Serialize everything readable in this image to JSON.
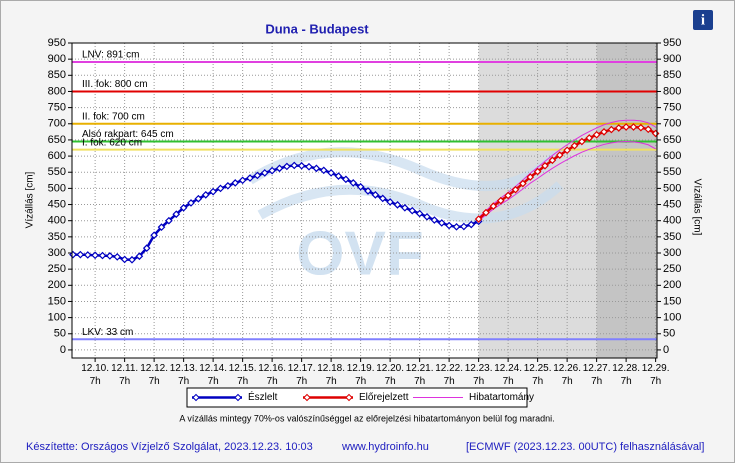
{
  "chart_data": {
    "type": "line",
    "title": "Duna - Budapest",
    "ylabel": "Vízállás [cm]",
    "y2label": "Vízállás [cm]",
    "watermark": "OVF",
    "info_button": "i",
    "categories": [
      null,
      null,
      null,
      "12.10.\n7h",
      null,
      null,
      null,
      "12.11.\n7h",
      null,
      null,
      null,
      "12.12.\n7h",
      null,
      null,
      null,
      "12.13.\n7h",
      null,
      null,
      null,
      "12.14.\n7h",
      null,
      null,
      null,
      "12.15.\n7h",
      null,
      null,
      null,
      "12.16.\n7h",
      null,
      null,
      null,
      "12.17.\n7h",
      null,
      null,
      null,
      "12.18.\n7h",
      null,
      null,
      null,
      "12.19.\n7h",
      null,
      null,
      null,
      "12.20.\n7h",
      null,
      null,
      null,
      "12.21.\n7h",
      null,
      null,
      null,
      "12.22.\n7h",
      null,
      null,
      null,
      "12.23.\n7h",
      null,
      null,
      null,
      "12.24.\n7h",
      null,
      null,
      null,
      "12.25.\n7h",
      null,
      null,
      null,
      "12.26.\n7h",
      null,
      null,
      null,
      "12.27.\n7h",
      null,
      null,
      null,
      "12.28.\n7h",
      null,
      null,
      null,
      "12.29.\n7h"
    ],
    "series": [
      {
        "name": "Észlelt",
        "color": "#0000c0",
        "values": [
          295,
          295,
          294,
          293,
          292,
          291,
          288,
          280,
          279,
          290,
          315,
          355,
          380,
          400,
          420,
          440,
          455,
          468,
          480,
          490,
          500,
          508,
          517,
          525,
          532,
          540,
          548,
          555,
          562,
          568,
          571,
          570,
          567,
          562,
          556,
          548,
          538,
          528,
          517,
          505,
          492,
          480,
          469,
          458,
          449,
          440,
          431,
          422,
          412,
          402,
          393,
          385,
          381,
          382,
          388,
          398,
          null,
          null,
          null,
          null,
          null,
          null,
          null,
          null,
          null,
          null,
          null,
          null,
          null,
          null,
          null,
          null,
          null,
          null,
          null,
          null,
          null,
          null,
          null,
          null
        ]
      },
      {
        "name": "Előrejelzett",
        "color": "#dd0000",
        "values": [
          null,
          null,
          null,
          null,
          null,
          null,
          null,
          null,
          null,
          null,
          null,
          null,
          null,
          null,
          null,
          null,
          null,
          null,
          null,
          null,
          null,
          null,
          null,
          null,
          null,
          null,
          null,
          null,
          null,
          null,
          null,
          null,
          null,
          null,
          null,
          null,
          null,
          null,
          null,
          null,
          null,
          null,
          null,
          null,
          null,
          null,
          null,
          null,
          null,
          null,
          null,
          null,
          null,
          null,
          null,
          405,
          425,
          445,
          462,
          478,
          496,
          515,
          535,
          552,
          570,
          587,
          603,
          618,
          632,
          645,
          656,
          666,
          675,
          682,
          687,
          690,
          690,
          688,
          683,
          670
        ]
      },
      {
        "name": "Hibatartomány",
        "color": "#dd33dd",
        "upper": [
          null,
          null,
          null,
          null,
          null,
          null,
          null,
          null,
          null,
          null,
          null,
          null,
          null,
          null,
          null,
          null,
          null,
          null,
          null,
          null,
          null,
          null,
          null,
          null,
          null,
          null,
          null,
          null,
          null,
          null,
          null,
          null,
          null,
          null,
          null,
          null,
          null,
          null,
          null,
          null,
          null,
          null,
          null,
          null,
          null,
          null,
          null,
          null,
          null,
          null,
          null,
          null,
          null,
          null,
          null,
          410,
          431,
          452,
          470,
          487,
          506,
          526,
          547,
          565,
          584,
          602,
          619,
          635,
          650,
          664,
          676,
          687,
          697,
          704,
          709,
          711,
          711,
          709,
          703,
          690
        ],
        "lower": [
          null,
          null,
          null,
          null,
          null,
          null,
          null,
          null,
          null,
          null,
          null,
          null,
          null,
          null,
          null,
          null,
          null,
          null,
          null,
          null,
          null,
          null,
          null,
          null,
          null,
          null,
          null,
          null,
          null,
          null,
          null,
          null,
          null,
          null,
          null,
          null,
          null,
          null,
          null,
          null,
          null,
          null,
          null,
          null,
          null,
          null,
          null,
          null,
          null,
          null,
          null,
          null,
          null,
          null,
          null,
          400,
          418,
          436,
          451,
          465,
          481,
          498,
          516,
          531,
          547,
          562,
          576,
          589,
          601,
          612,
          621,
          629,
          636,
          641,
          644,
          645,
          644,
          641,
          635,
          622
        ]
      }
    ],
    "thresholds": [
      {
        "label": "LNV: 891 cm",
        "value": 891,
        "color": "#e040e0"
      },
      {
        "label": "III. fok: 800 cm",
        "value": 800,
        "color": "#e00000"
      },
      {
        "label": "II. fok: 700 cm",
        "value": 700,
        "color": "#e8b000"
      },
      {
        "label": "Alsó rakpart: 645 cm",
        "value": 645,
        "color": "#30c030"
      },
      {
        "label": "I. fok: 620 cm",
        "value": 620,
        "color": "#f0e060"
      },
      {
        "label": "LKV: 33 cm",
        "value": 33,
        "color": "#8080ff"
      }
    ],
    "ylim": [
      -25,
      950
    ],
    "yticks": [
      0,
      50,
      100,
      150,
      200,
      250,
      300,
      350,
      400,
      450,
      500,
      550,
      600,
      650,
      700,
      750,
      800,
      850,
      900,
      950
    ],
    "y2lim": [
      -25,
      950
    ],
    "y2ticks": [
      0,
      50,
      100,
      150,
      200,
      250,
      300,
      350,
      400,
      450,
      500,
      550,
      600,
      650,
      700,
      750,
      800,
      850,
      900,
      950
    ],
    "grid": true,
    "note": "A vízállás mintegy 70%-os valószínűséggel az előrejelzési hibatartományon belül fog maradni.",
    "footer": [
      "Készítette: Országos Vízjelző Szolgálat, 2023.12.23. 10:03",
      "www.hydroinfo.hu",
      "[ECMWF (2023.12.23. 00UTC) felhasználásával]"
    ]
  }
}
